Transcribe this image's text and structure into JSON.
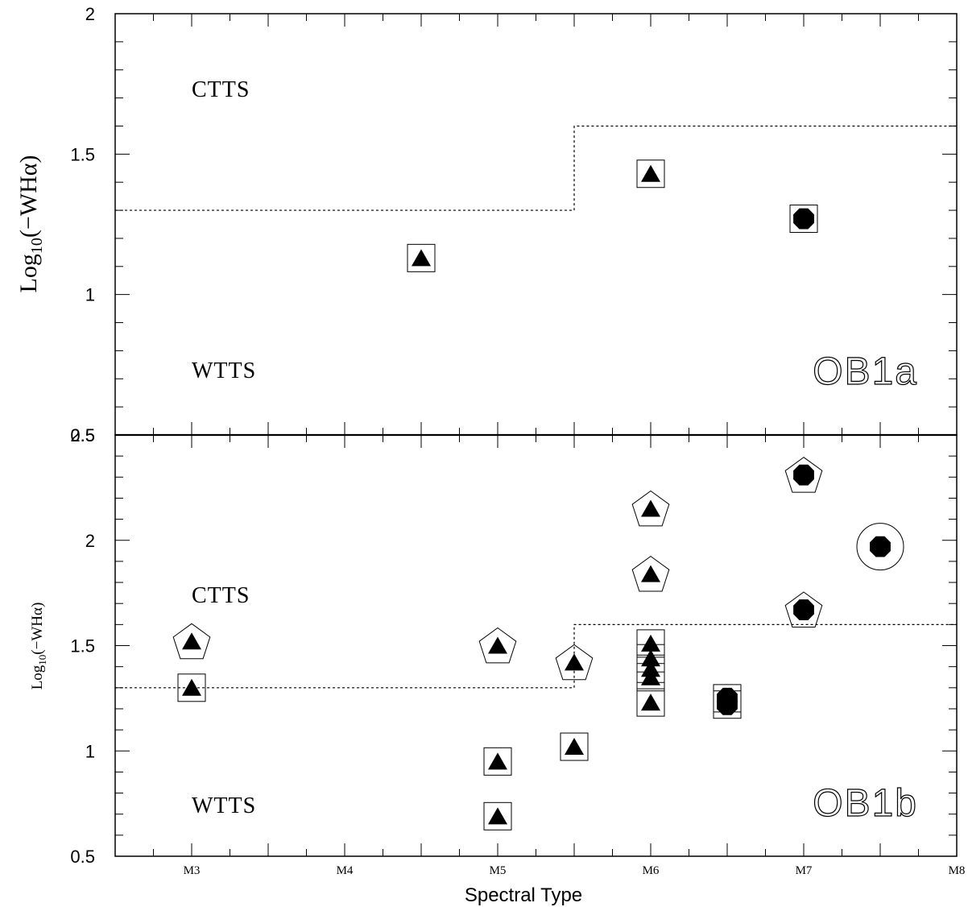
{
  "chart_data": [
    {
      "type": "scatter",
      "panel_label": "OB1a",
      "ylabel": "Log10(−WHα)",
      "ylim": [
        0.5,
        2
      ],
      "y_ticks": [
        "0.5",
        "1",
        "1.5",
        "2"
      ],
      "region_labels": {
        "upper": "CTTS",
        "lower": "WTTS"
      },
      "threshold": [
        {
          "from": "M2.5",
          "to": "M5.5",
          "y": 1.3
        },
        {
          "from": "M5.5",
          "to": "M8",
          "y": 1.6
        }
      ],
      "series": [
        {
          "marker": "triangle",
          "enclosure": "square",
          "x": "M4.5",
          "y": 1.13
        },
        {
          "marker": "triangle",
          "enclosure": "square",
          "x": "M6",
          "y": 1.43
        },
        {
          "marker": "circle",
          "enclosure": "square",
          "x": "M7",
          "y": 1.27
        }
      ]
    },
    {
      "type": "scatter",
      "panel_label": "OB1b",
      "ylabel": "Log10(−WHα)",
      "xlabel": "Spectral Type",
      "ylim": [
        0.5,
        2.5
      ],
      "y_ticks": [
        "0.5",
        "1",
        "1.5",
        "2",
        "2.5"
      ],
      "categories": [
        "M3",
        "M4",
        "M5",
        "M6",
        "M7",
        "M8"
      ],
      "region_labels": {
        "upper": "CTTS",
        "lower": "WTTS"
      },
      "threshold": [
        {
          "from": "M2.5",
          "to": "M5.5",
          "y": 1.3
        },
        {
          "from": "M5.5",
          "to": "M8",
          "y": 1.6
        }
      ],
      "series": [
        {
          "marker": "triangle",
          "enclosure": "pentagon",
          "x": "M3",
          "y": 1.52
        },
        {
          "marker": "triangle",
          "enclosure": "square",
          "x": "M3",
          "y": 1.3
        },
        {
          "marker": "triangle",
          "enclosure": "pentagon",
          "x": "M5",
          "y": 1.5
        },
        {
          "marker": "triangle",
          "enclosure": "square",
          "x": "M5",
          "y": 0.95
        },
        {
          "marker": "triangle",
          "enclosure": "square",
          "x": "M5",
          "y": 0.69
        },
        {
          "marker": "triangle",
          "enclosure": "pentagon",
          "x": "M5.5",
          "y": 1.42
        },
        {
          "marker": "triangle",
          "enclosure": "square",
          "x": "M5.5",
          "y": 1.02
        },
        {
          "marker": "triangle",
          "enclosure": "pentagon",
          "x": "M6",
          "y": 2.15
        },
        {
          "marker": "triangle",
          "enclosure": "pentagon",
          "x": "M6",
          "y": 1.84
        },
        {
          "marker": "triangle",
          "enclosure": "square",
          "x": "M6",
          "y": 1.51
        },
        {
          "marker": "triangle",
          "enclosure": "square",
          "x": "M6",
          "y": 1.44
        },
        {
          "marker": "triangle",
          "enclosure": "square",
          "x": "M6",
          "y": 1.39
        },
        {
          "marker": "triangle",
          "enclosure": "square",
          "x": "M6",
          "y": 1.35
        },
        {
          "marker": "triangle",
          "enclosure": "square",
          "x": "M6",
          "y": 1.23
        },
        {
          "marker": "circle",
          "enclosure": "square",
          "x": "M6.5",
          "y": 1.25
        },
        {
          "marker": "circle",
          "enclosure": "square",
          "x": "M6.5",
          "y": 1.22
        },
        {
          "marker": "circle",
          "enclosure": "pentagon",
          "x": "M7",
          "y": 2.31
        },
        {
          "marker": "circle",
          "enclosure": "pentagon",
          "x": "M7",
          "y": 1.67
        },
        {
          "marker": "circle",
          "enclosure": "circle",
          "x": "M7.5",
          "y": 1.97
        }
      ]
    }
  ]
}
